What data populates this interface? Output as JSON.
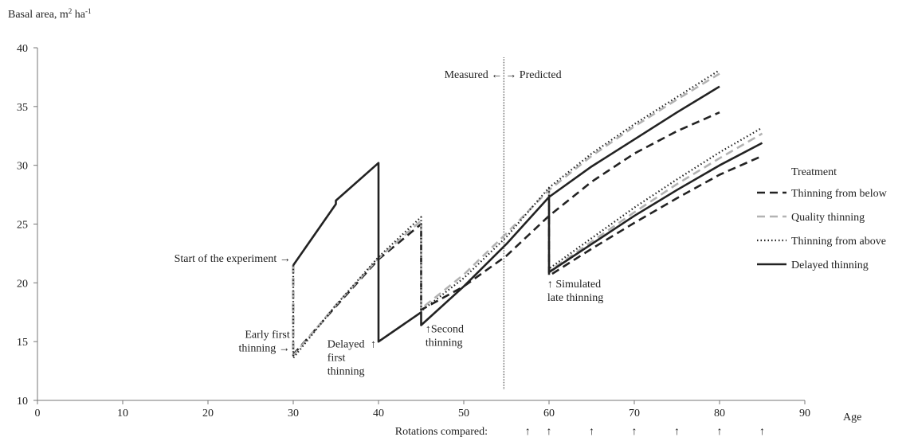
{
  "chart_data": {
    "type": "line",
    "ylabel_main": "Basal area, m",
    "ylabel_sup": "2",
    "ylabel_mid": " ha",
    "ylabel_sup2": "-1",
    "xlabel": "Age",
    "xlim": [
      0,
      90
    ],
    "ylim": [
      10,
      40
    ],
    "xticks": [
      "0",
      "10",
      "20",
      "30",
      "40",
      "50",
      "60",
      "70",
      "80",
      "90"
    ],
    "yticks": [
      "10",
      "15",
      "20",
      "25",
      "30",
      "35",
      "40"
    ],
    "grid": false,
    "divider": {
      "x": 54.7,
      "label_left": "Measured ←",
      "label_right": "→ Predicted"
    },
    "legend": {
      "title": "Treatment",
      "position": "right"
    },
    "series": [
      {
        "name": "Thinning from below",
        "color": "#222222",
        "dash": "dashed",
        "segments": [
          [
            [
              30,
              21.5
            ],
            [
              30,
              13.9
            ],
            [
              35,
              18.0
            ],
            [
              40,
              22.0
            ],
            [
              45,
              25.0
            ],
            [
              45,
              17.7
            ],
            [
              50,
              19.7
            ],
            [
              55,
              22.3
            ],
            [
              60,
              25.7
            ],
            [
              65,
              28.6
            ],
            [
              70,
              31.0
            ],
            [
              75,
              32.9
            ],
            [
              80,
              34.5
            ]
          ],
          [
            [
              60,
              25.7
            ],
            [
              60,
              20.6
            ],
            [
              65,
              22.9
            ],
            [
              70,
              25.1
            ],
            [
              75,
              27.2
            ],
            [
              80,
              29.2
            ],
            [
              85,
              30.8
            ]
          ]
        ]
      },
      {
        "name": "Quality thinning",
        "color": "#b3b3b3",
        "dash": "dashed",
        "segments": [
          [
            [
              30,
              21.5
            ],
            [
              30,
              13.8
            ],
            [
              35,
              18.1
            ],
            [
              40,
              22.1
            ],
            [
              45,
              25.3
            ],
            [
              45,
              17.8
            ],
            [
              50,
              20.7
            ],
            [
              55,
              24.2
            ],
            [
              60,
              27.9
            ],
            [
              65,
              30.8
            ],
            [
              70,
              33.3
            ],
            [
              75,
              35.6
            ],
            [
              80,
              37.8
            ]
          ],
          [
            [
              60,
              27.9
            ],
            [
              60,
              21.0
            ],
            [
              65,
              23.5
            ],
            [
              70,
              26.0
            ],
            [
              75,
              28.4
            ],
            [
              80,
              30.6
            ],
            [
              85,
              32.7
            ]
          ]
        ]
      },
      {
        "name": "Thinning from above",
        "color": "#222222",
        "dash": "dotted",
        "segments": [
          [
            [
              30,
              21.5
            ],
            [
              30,
              13.6
            ],
            [
              35,
              18.1
            ],
            [
              40,
              22.2
            ],
            [
              45,
              25.6
            ],
            [
              45,
              17.6
            ],
            [
              50,
              20.4
            ],
            [
              55,
              23.9
            ],
            [
              60,
              28.1
            ],
            [
              65,
              31.0
            ],
            [
              70,
              33.5
            ],
            [
              75,
              35.8
            ],
            [
              80,
              38.1
            ]
          ],
          [
            [
              60,
              28.1
            ],
            [
              60,
              21.2
            ],
            [
              65,
              23.8
            ],
            [
              70,
              26.4
            ],
            [
              75,
              28.8
            ],
            [
              80,
              31.1
            ],
            [
              85,
              33.2
            ]
          ]
        ]
      },
      {
        "name": "Delayed thinning",
        "color": "#222222",
        "dash": "solid",
        "segments": [
          [
            [
              30,
              21.5
            ],
            [
              35,
              26.7
            ],
            [
              35,
              27.0
            ],
            [
              40,
              30.2
            ],
            [
              40,
              15.0
            ],
            [
              45,
              17.5
            ],
            [
              45,
              16.4
            ],
            [
              50,
              19.7
            ],
            [
              55,
              23.3
            ],
            [
              60,
              27.3
            ],
            [
              65,
              29.9
            ],
            [
              70,
              32.2
            ],
            [
              75,
              34.5
            ],
            [
              80,
              36.7
            ]
          ],
          [
            [
              60,
              27.3
            ],
            [
              60,
              20.9
            ],
            [
              65,
              23.3
            ],
            [
              70,
              25.7
            ],
            [
              75,
              27.9
            ],
            [
              80,
              30.0
            ],
            [
              85,
              31.9
            ]
          ]
        ]
      }
    ],
    "annotations": [
      {
        "lines": [
          "Start of the experiment →"
        ],
        "x": 29.7,
        "y": 21.8,
        "anchor": "end"
      },
      {
        "lines": [
          "Early first",
          "thinning  →"
        ],
        "x": 29.6,
        "y": 15.3,
        "anchor": "end"
      },
      {
        "lines": [
          "Delayed",
          "first",
          "thinning"
        ],
        "x": 34.0,
        "y": 14.5,
        "anchor": "start"
      },
      {
        "lines": [
          "↑"
        ],
        "x": 39.4,
        "y": 14.5,
        "anchor": "middle"
      },
      {
        "lines": [
          "↑Second",
          "thinning"
        ],
        "x": 45.5,
        "y": 15.8,
        "anchor": "start"
      },
      {
        "lines": [
          "↑ Simulated",
          "late thinning"
        ],
        "x": 59.8,
        "y": 19.6,
        "anchor": "start"
      }
    ],
    "rotations": {
      "label": "Rotations compared:",
      "ages": [
        60,
        65,
        70,
        75,
        80,
        85
      ],
      "extra_arrow_x": 57.5,
      "arrow": "↑"
    }
  }
}
